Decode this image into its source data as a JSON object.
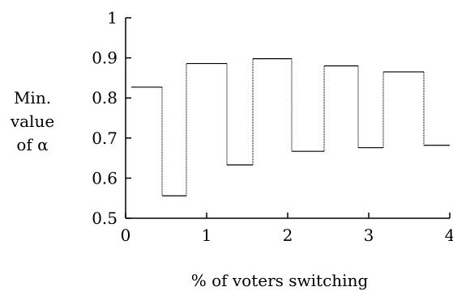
{
  "chart_data": {
    "type": "line",
    "xlabel": "% of voters switching",
    "ylabel_lines": [
      "Min.",
      "value",
      "of α"
    ],
    "xlim": [
      0,
      4
    ],
    "ylim": [
      0.5,
      1
    ],
    "xticks": [
      0,
      1,
      2,
      3,
      4
    ],
    "yticks": [
      0.5,
      0.6,
      0.7,
      0.8,
      0.9,
      1
    ],
    "xtick_labels": [
      "0",
      "1",
      "2",
      "3",
      "4"
    ],
    "ytick_labels": [
      "0.5",
      "0.6",
      "0.7",
      "0.8",
      "0.9",
      "1"
    ],
    "grid": false,
    "series": [
      {
        "style": "step",
        "segments": [
          {
            "x0": 0.07,
            "x1": 0.45,
            "y": 0.827
          },
          {
            "x0": 0.45,
            "x1": 0.75,
            "y": 0.556
          },
          {
            "x0": 0.75,
            "x1": 1.25,
            "y": 0.886
          },
          {
            "x0": 1.25,
            "x1": 1.57,
            "y": 0.633
          },
          {
            "x0": 1.57,
            "x1": 2.05,
            "y": 0.898
          },
          {
            "x0": 2.05,
            "x1": 2.45,
            "y": 0.667
          },
          {
            "x0": 2.45,
            "x1": 2.87,
            "y": 0.88
          },
          {
            "x0": 2.87,
            "x1": 3.18,
            "y": 0.676
          },
          {
            "x0": 3.18,
            "x1": 3.68,
            "y": 0.865
          },
          {
            "x0": 3.68,
            "x1": 4.0,
            "y": 0.682
          }
        ]
      }
    ]
  }
}
